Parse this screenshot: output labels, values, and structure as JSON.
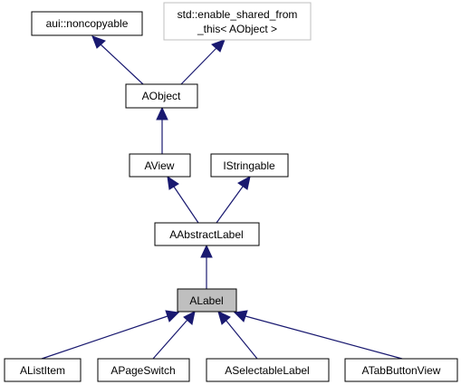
{
  "diagram": {
    "nodes": {
      "noncopyable": "aui::noncopyable",
      "enable_shared_line1": "std::enable_shared_from",
      "enable_shared_line2": "_this< AObject >",
      "aobject": "AObject",
      "aview": "AView",
      "istringable": "IStringable",
      "aabstractlabel": "AAbstractLabel",
      "alabel": "ALabel",
      "alistitem": "AListItem",
      "apageswitch": "APageSwitch",
      "aselectablelabel": "ASelectableLabel",
      "atabbuttonview": "ATabButtonView"
    },
    "colors": {
      "edge": "#191970",
      "highlight_fill": "#bfbfbf",
      "external_border": "#bfbfbf"
    }
  }
}
